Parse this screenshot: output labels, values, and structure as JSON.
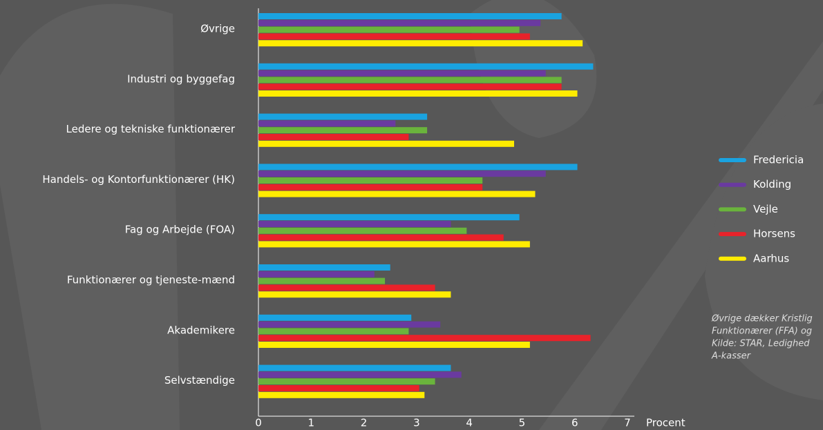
{
  "chart_data": {
    "type": "hbar",
    "categories": [
      "Øvrige",
      "Industri og byggefag",
      "Ledere og tekniske funktionærer",
      "Handels- og Kontorfunktionærer (HK)",
      "Fag og Arbejde (FOA)",
      "Funktionærer og tjeneste-mænd",
      "Akademikere",
      "Selvstændige"
    ],
    "series": [
      {
        "name": "Fredericia",
        "color": "#1aa3e0",
        "values": [
          5.75,
          6.35,
          3.2,
          6.05,
          4.95,
          2.5,
          2.9,
          3.65
        ]
      },
      {
        "name": "Kolding",
        "color": "#6a3aa0",
        "values": [
          5.35,
          5.45,
          2.6,
          5.45,
          3.65,
          2.2,
          3.45,
          3.85
        ]
      },
      {
        "name": "Vejle",
        "color": "#6ab43c",
        "values": [
          4.95,
          5.75,
          3.2,
          4.25,
          3.95,
          2.4,
          2.85,
          3.35
        ]
      },
      {
        "name": "Horsens",
        "color": "#e8222a",
        "values": [
          5.15,
          5.75,
          2.85,
          4.25,
          4.65,
          3.35,
          6.3,
          3.05
        ]
      },
      {
        "name": "Aarhus",
        "color": "#ffec00",
        "values": [
          6.15,
          6.05,
          4.85,
          5.25,
          5.15,
          3.65,
          5.15,
          3.15
        ]
      }
    ],
    "xlim": [
      0,
      7
    ],
    "xticks": [
      0,
      1,
      2,
      3,
      4,
      5,
      6,
      7
    ],
    "x_label": "Procent",
    "annotations": [
      "Øvrige dækker Kristlig",
      "Funktionærer (FFA) og",
      "Kilde: STAR, Ledighed",
      "A-kasser"
    ]
  }
}
